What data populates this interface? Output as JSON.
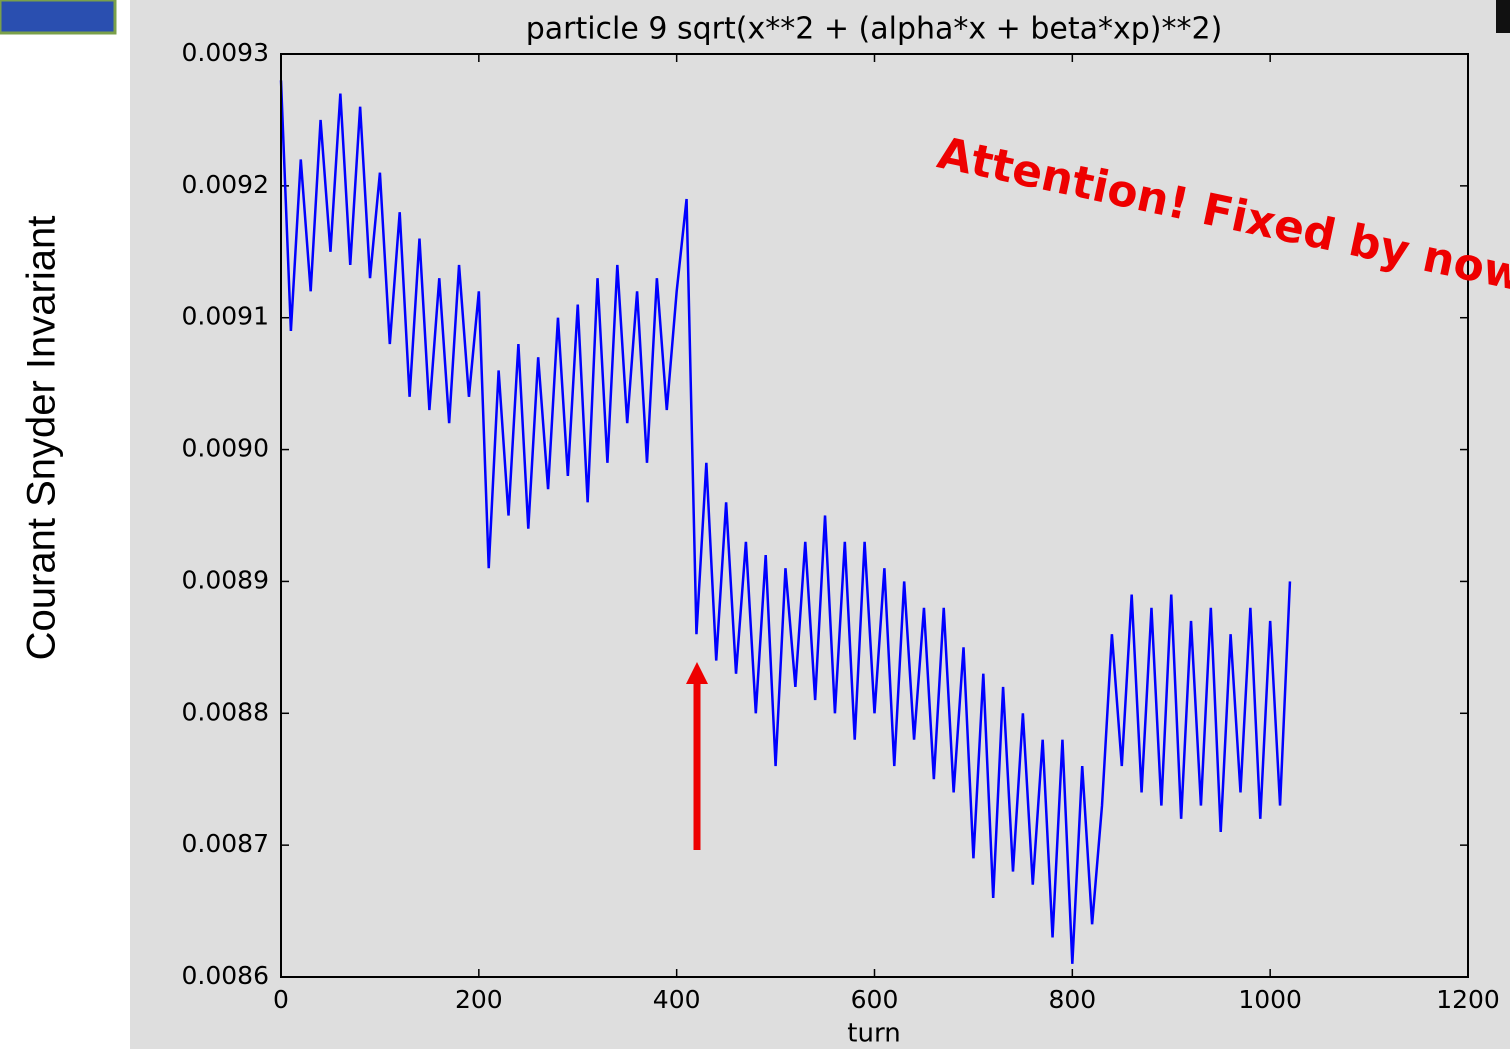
{
  "chart_data": {
    "type": "line",
    "title": "particle 9 sqrt(x**2 + (alpha*x + beta*xp)**2)",
    "x_label": "turn",
    "y_label": "Courant Snyder Invariant",
    "annotation": "Attention! Fixed by now",
    "xlim": [
      0,
      1200
    ],
    "xticks": [
      0,
      200,
      400,
      600,
      800,
      1000,
      1200
    ],
    "ylim": [
      0.0086,
      0.0093
    ],
    "yticks": [
      0.0086,
      0.0087,
      0.0088,
      0.0089,
      {
        "value": 0.009,
        "label": "0.0090"
      },
      0.0091,
      0.0092,
      0.0093
    ],
    "x": [
      0,
      10,
      20,
      30,
      40,
      50,
      60,
      70,
      80,
      90,
      100,
      110,
      120,
      130,
      140,
      150,
      160,
      170,
      180,
      190,
      200,
      210,
      220,
      230,
      240,
      250,
      260,
      270,
      280,
      290,
      300,
      310,
      320,
      330,
      340,
      350,
      360,
      370,
      380,
      390,
      400,
      410,
      420,
      430,
      440,
      450,
      460,
      470,
      480,
      490,
      500,
      510,
      520,
      530,
      540,
      550,
      560,
      570,
      580,
      590,
      600,
      610,
      620,
      630,
      640,
      650,
      660,
      670,
      680,
      690,
      700,
      710,
      720,
      730,
      740,
      750,
      760,
      770,
      780,
      790,
      800,
      810,
      820,
      830,
      840,
      850,
      860,
      870,
      880,
      890,
      900,
      910,
      920,
      930,
      940,
      950,
      960,
      970,
      980,
      990,
      1000,
      1010,
      1020
    ],
    "series": [
      {
        "color": "#0000ff",
        "values": [
          0.00928,
          0.00909,
          0.00922,
          0.00912,
          0.00925,
          0.00915,
          0.00927,
          0.00914,
          0.00926,
          0.00913,
          0.00921,
          0.00908,
          0.00918,
          0.00904,
          0.00916,
          0.00903,
          0.00913,
          0.00902,
          0.00914,
          0.00904,
          0.00912,
          0.00891,
          0.00906,
          0.00895,
          0.00908,
          0.00894,
          0.00907,
          0.00897,
          0.0091,
          0.00898,
          0.00911,
          0.00896,
          0.00913,
          0.00899,
          0.00914,
          0.00902,
          0.00912,
          0.00899,
          0.00913,
          0.00903,
          0.00912,
          0.00919,
          0.00886,
          0.00899,
          0.00884,
          0.00896,
          0.00883,
          0.00893,
          0.0088,
          0.00892,
          0.00876,
          0.00891,
          0.00882,
          0.00893,
          0.00881,
          0.00895,
          0.0088,
          0.00893,
          0.00878,
          0.00893,
          0.0088,
          0.00891,
          0.00876,
          0.0089,
          0.00878,
          0.00888,
          0.00875,
          0.00888,
          0.00874,
          0.00885,
          0.00869,
          0.00883,
          0.00866,
          0.00882,
          0.00868,
          0.0088,
          0.00867,
          0.00878,
          0.00863,
          0.00878,
          0.00861,
          0.00876,
          0.00864,
          0.00873,
          0.00886,
          0.00876,
          0.00889,
          0.00874,
          0.00888,
          0.00873,
          0.00889,
          0.00872,
          0.00887,
          0.00873,
          0.00888,
          0.00871,
          0.00886,
          0.00874,
          0.00888,
          0.00872,
          0.00887,
          0.00873,
          0.0089
        ]
      }
    ]
  }
}
